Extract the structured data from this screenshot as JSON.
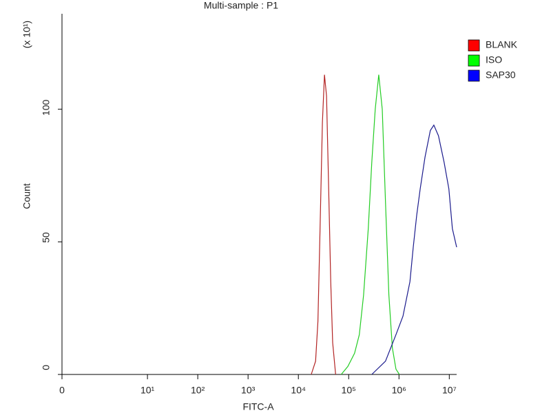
{
  "chart_data": {
    "type": "line",
    "title": "Multi-sample : P1",
    "xlabel": "FITC-A",
    "ylabel": "Count",
    "y_multiplier": "(x 10¹)",
    "xscale": "log",
    "xlim": [
      0.2,
      14000000
    ],
    "ylim": [
      0,
      136
    ],
    "xticks": [
      0,
      {
        "value": 10,
        "label": "10¹"
      },
      {
        "value": 100,
        "label": "10²"
      },
      {
        "value": 1000,
        "label": "10³"
      },
      {
        "value": 10000,
        "label": "10⁴"
      },
      {
        "value": 100000,
        "label": "10⁵"
      },
      {
        "value": 1000000,
        "label": "10⁶"
      },
      {
        "value": 10000000,
        "label": "10⁷"
      }
    ],
    "yticks": [
      0,
      50,
      100
    ],
    "legend": "right",
    "series": [
      {
        "name": "BLANK",
        "color": "#b22222",
        "legend_color": "#ff0000",
        "x": [
          18000,
          22000,
          24500,
          27000,
          30000,
          33000,
          36300,
          40000,
          44000,
          48000,
          55000
        ],
        "values": [
          0,
          5,
          20,
          55,
          95,
          113,
          105,
          70,
          35,
          12,
          0
        ]
      },
      {
        "name": "ISO",
        "color": "#22cc22",
        "legend_color": "#00ff00",
        "x": [
          71000,
          96000,
          131000,
          163000,
          198000,
          245000,
          288000,
          337000,
          396000,
          465000,
          540000,
          630000,
          740000,
          870000,
          1020000
        ],
        "values": [
          0,
          3,
          8,
          15,
          30,
          55,
          80,
          100,
          113,
          100,
          65,
          30,
          10,
          2,
          0
        ]
      },
      {
        "name": "SAP30",
        "color": "#1a1a8c",
        "legend_color": "#0000ff",
        "x": [
          288000,
          540000,
          870000,
          1200000,
          1650000,
          1920000,
          2250000,
          2640000,
          3290000,
          4200000,
          4930000,
          6100000,
          7900000,
          9800000,
          11500000,
          14000000
        ],
        "values": [
          0,
          5,
          15,
          22,
          35,
          48,
          60,
          70,
          82,
          92,
          94,
          90,
          80,
          70,
          55,
          48
        ]
      }
    ]
  }
}
